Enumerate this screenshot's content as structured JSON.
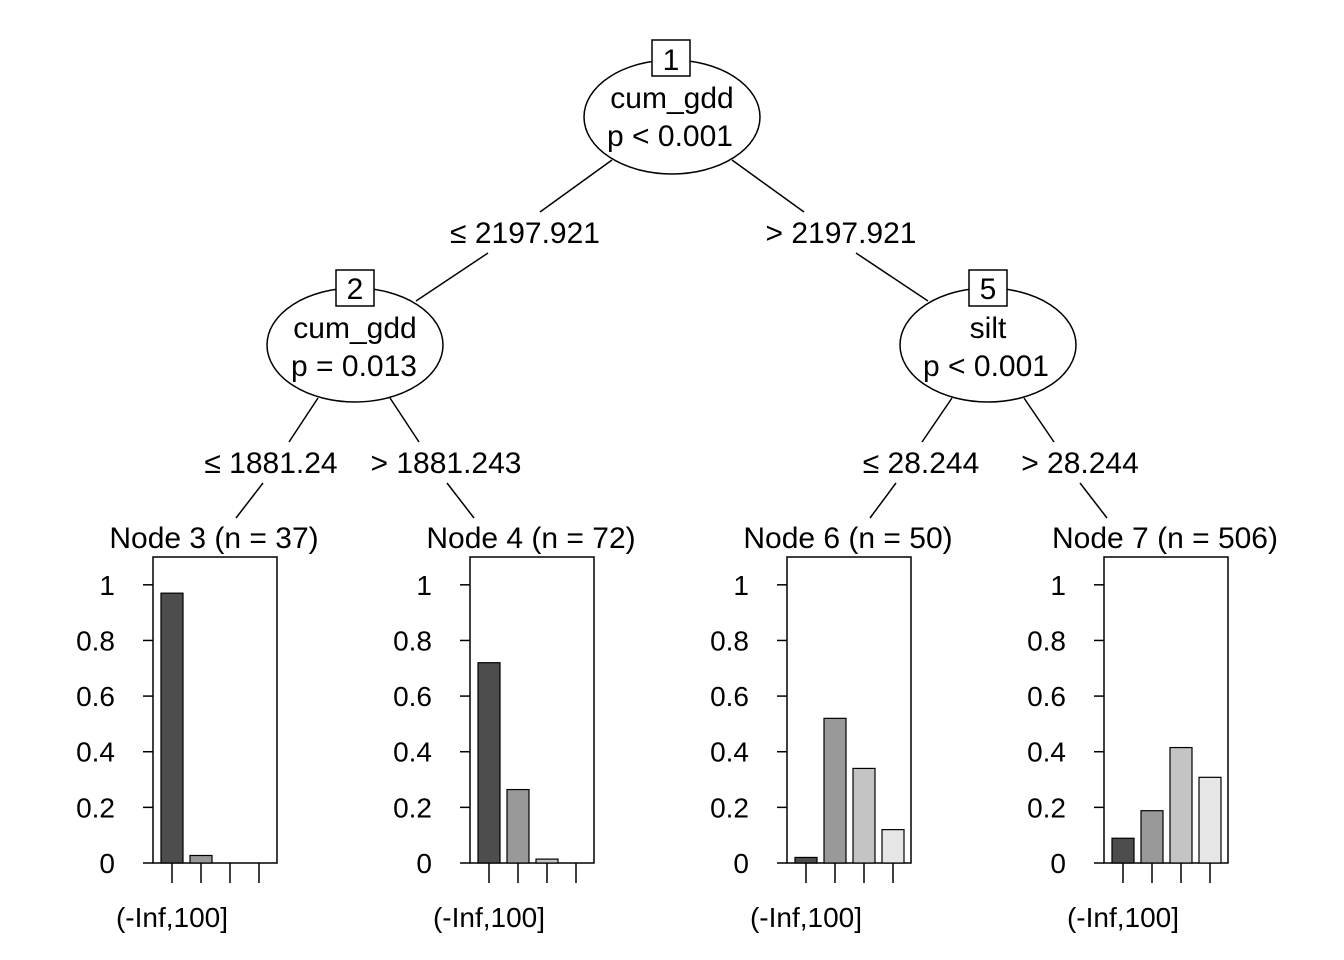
{
  "tree": {
    "inner_nodes": [
      {
        "id": "1",
        "variable": "cum_gdd",
        "p_text": "p < 0.001"
      },
      {
        "id": "2",
        "variable": "cum_gdd",
        "p_text": "p = 0.013"
      },
      {
        "id": "5",
        "variable": "silt",
        "p_text": "p < 0.001"
      }
    ],
    "edges": [
      {
        "from": "1",
        "to": "2",
        "label": "≤ 2197.921"
      },
      {
        "from": "1",
        "to": "5",
        "label": "> 2197.921"
      },
      {
        "from": "2",
        "to": "3",
        "label": "≤ 1881.24"
      },
      {
        "from": "2",
        "to": "4",
        "label": "> 1881.243"
      },
      {
        "from": "5",
        "to": "6",
        "label": "≤ 28.244"
      },
      {
        "from": "5",
        "to": "7",
        "label": "> 28.244"
      }
    ],
    "leaf_titles": [
      "Node 3 (n = 37)",
      "Node 4 (n = 72)",
      "Node 6 (n = 50)",
      "Node 7 (n = 506)"
    ]
  },
  "chart_data": [
    {
      "type": "bar",
      "title": "Node 3 (n = 37)",
      "x_label_visible": "(-Inf,100]",
      "ylim": [
        0,
        1.09
      ],
      "yticks": [
        "0",
        "0.2",
        "0.4",
        "0.6",
        "0.8",
        "1"
      ],
      "values": [
        0.97,
        0.027,
        0,
        0
      ]
    },
    {
      "type": "bar",
      "title": "Node 4 (n = 72)",
      "x_label_visible": "(-Inf,100]",
      "ylim": [
        0,
        1.09
      ],
      "yticks": [
        "0",
        "0.2",
        "0.4",
        "0.6",
        "0.8",
        "1"
      ],
      "values": [
        0.72,
        0.264,
        0.014,
        0
      ]
    },
    {
      "type": "bar",
      "title": "Node 6 (n = 50)",
      "x_label_visible": "(-Inf,100]",
      "ylim": [
        0,
        1.09
      ],
      "yticks": [
        "0",
        "0.2",
        "0.4",
        "0.6",
        "0.8",
        "1"
      ],
      "values": [
        0.02,
        0.52,
        0.34,
        0.12
      ]
    },
    {
      "type": "bar",
      "title": "Node 7 (n = 506)",
      "x_label_visible": "(-Inf,100]",
      "ylim": [
        0,
        1.09
      ],
      "yticks": [
        "0",
        "0.2",
        "0.4",
        "0.6",
        "0.8",
        "1"
      ],
      "values": [
        0.089,
        0.188,
        0.415,
        0.308
      ]
    }
  ],
  "colors": {
    "bars": [
      "#4d4d4d",
      "#999999",
      "#c4c4c4",
      "#e6e6e6"
    ],
    "stroke": "#000000"
  }
}
